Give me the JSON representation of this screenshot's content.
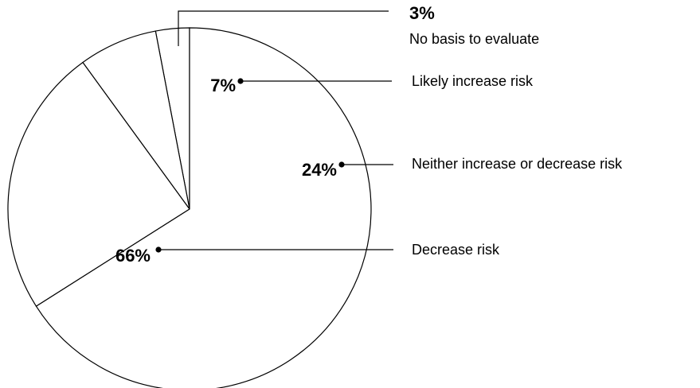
{
  "chart_data": {
    "type": "pie",
    "categories": [
      "No basis to evaluate",
      "Likely increase risk",
      "Neither increase or decrease risk",
      "Decrease risk"
    ],
    "values": [
      3,
      7,
      24,
      66
    ],
    "labels": [
      "3%",
      "7%",
      "24%",
      "66%"
    ],
    "title": "",
    "legend": "none",
    "colors": {
      "fill": "#ffffff",
      "stroke": "#000000"
    }
  }
}
